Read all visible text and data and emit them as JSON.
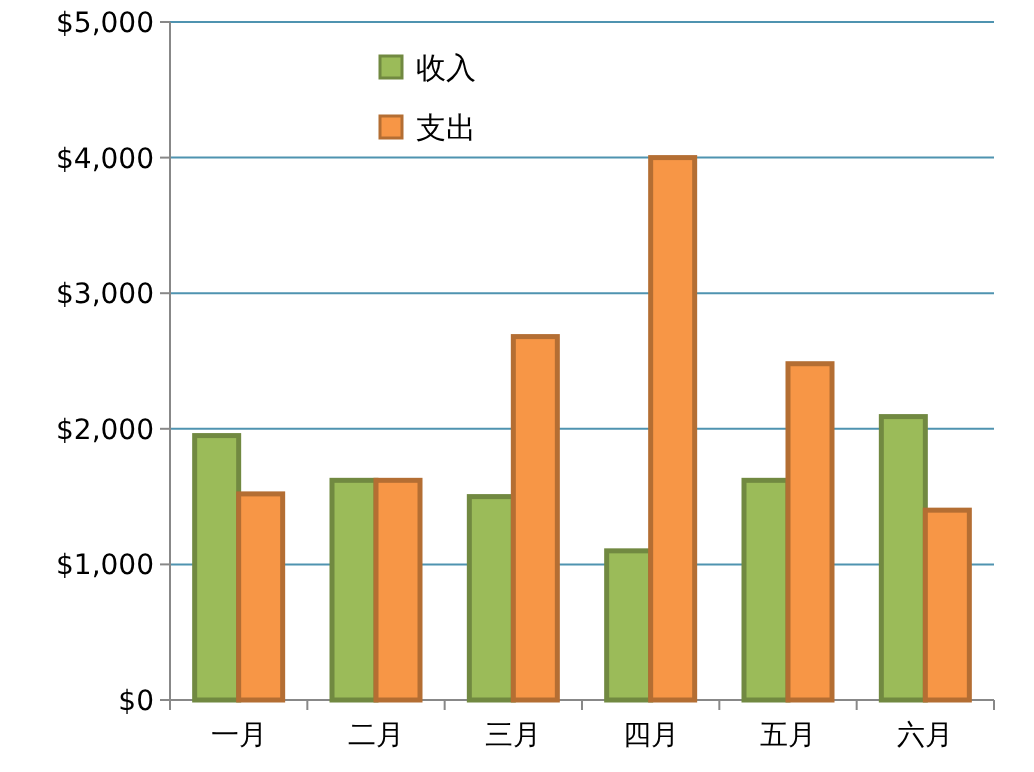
{
  "chart_data": {
    "type": "bar",
    "categories": [
      "一月",
      "二月",
      "三月",
      "四月",
      "五月",
      "六月"
    ],
    "series": [
      {
        "name": "收入",
        "color": "#9bbb59",
        "values": [
          1950,
          1620,
          1500,
          1100,
          1620,
          2090
        ]
      },
      {
        "name": "支出",
        "color": "#f79646",
        "values": [
          1520,
          1620,
          2680,
          4000,
          2480,
          1400
        ]
      }
    ],
    "ylim": [
      0,
      5000
    ],
    "yticks": [
      {
        "value": 0,
        "label": "$0"
      },
      {
        "value": 1000,
        "label": "$1,000"
      },
      {
        "value": 2000,
        "label": "$2,000"
      },
      {
        "value": 3000,
        "label": "$3,000"
      },
      {
        "value": 4000,
        "label": "$4,000"
      },
      {
        "value": 5000,
        "label": "$5,000"
      }
    ],
    "grid": "y",
    "legend": "top"
  }
}
